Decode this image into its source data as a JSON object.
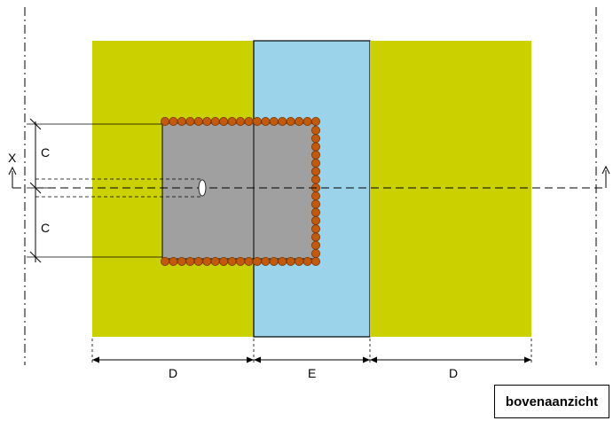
{
  "labels": {
    "dim_c_upper": "C",
    "dim_c_lower": "C",
    "dim_d_left": "D",
    "dim_e": "E",
    "dim_d_right": "D",
    "section_marker": "X"
  },
  "view_label": "bovenaanzicht",
  "colors": {
    "outer_zone": "#cbd100",
    "middle_zone": "#9ad3ea",
    "block": "#a0a0a0",
    "dowel_fill": "#c15a0e",
    "dowel_stroke": "#7a3300",
    "lines": "#000000"
  }
}
